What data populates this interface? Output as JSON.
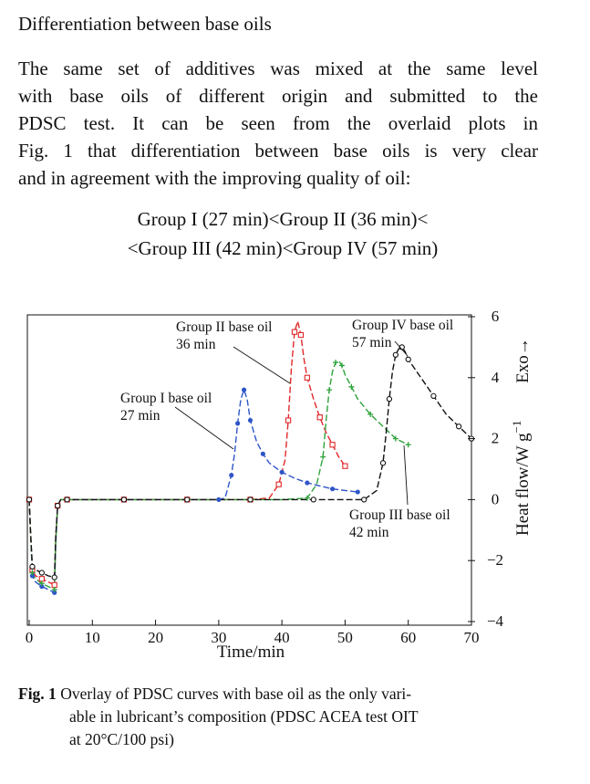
{
  "section_heading": "Differentiation between base oils",
  "paragraph_lines": [
    "The same set of additives was mixed at the same level",
    "with base oils of different origin and submitted to the",
    "PDSC test. It can be seen from the overlaid plots in",
    "Fig. 1 that differentiation between base oils is very clear",
    "and in agreement with the improving quality of oil:"
  ],
  "formula_lines": [
    "Group I (27 min)<Group II (36 min)<",
    "<Group III (42 min)<Group IV (57 min)"
  ],
  "figure_caption": {
    "label": "Fig. 1",
    "lines": [
      "Overlay of PDSC curves with base oil as the only vari-",
      "able in lubricant’s composition (PDSC ACEA test OIT",
      "at 20°C/100 psi)"
    ]
  },
  "chart_data": {
    "type": "line",
    "xlabel": "Time/min",
    "ylabel": "Heat flow/W g",
    "ylabel_superscript": "−1",
    "y_arrow_label": "Exo→",
    "xlim": [
      0,
      70
    ],
    "ylim": [
      -4,
      6
    ],
    "x_ticks": [
      0,
      10,
      20,
      30,
      40,
      50,
      60,
      70
    ],
    "y_ticks": [
      -4,
      -2,
      0,
      2,
      4,
      6
    ],
    "y_tick_labels": [
      "−4",
      "−2",
      "0",
      "2",
      "4",
      "6"
    ],
    "grid": false,
    "legend": "none (curves labelled directly)",
    "series": [
      {
        "name": "Group I base oil",
        "annotation": [
          "Group I base oil",
          "27 min"
        ],
        "color": "#2f56c8",
        "marker": "filled-circle",
        "x": [
          0,
          0.2,
          0.5,
          1,
          2,
          3,
          4,
          4.2,
          4.5,
          5,
          6,
          10,
          15,
          20,
          25,
          28,
          30,
          31,
          32,
          32.5,
          33,
          33.5,
          34,
          34.5,
          35,
          36,
          37,
          38,
          40,
          42,
          44,
          46,
          48,
          50,
          52
        ],
        "y": [
          0,
          -1,
          -2.5,
          -2.7,
          -2.85,
          -2.95,
          -3.05,
          -1.5,
          -0.2,
          0,
          0,
          0,
          0,
          0,
          0,
          0,
          0,
          0.05,
          0.8,
          1.5,
          2.5,
          3.3,
          3.6,
          3.3,
          2.6,
          1.9,
          1.5,
          1.2,
          0.9,
          0.7,
          0.55,
          0.45,
          0.35,
          0.3,
          0.25
        ]
      },
      {
        "name": "Group II base oil",
        "annotation": [
          "Group II base oil",
          "36 min"
        ],
        "color": "#e0282a",
        "marker": "open-square",
        "x": [
          0,
          0.2,
          0.5,
          1,
          2,
          3,
          4,
          4.2,
          4.5,
          5,
          6,
          10,
          15,
          20,
          25,
          30,
          35,
          38,
          39.5,
          40.5,
          41,
          41.5,
          42,
          42.5,
          43,
          43.5,
          44,
          45,
          46,
          47,
          48,
          49,
          50
        ],
        "y": [
          0,
          -1,
          -2.3,
          -2.5,
          -2.6,
          -2.7,
          -2.8,
          -1.3,
          -0.2,
          0,
          0,
          0,
          0,
          0,
          0,
          0,
          0,
          0.05,
          0.5,
          1.3,
          2.6,
          4.3,
          5.5,
          5.85,
          5.4,
          4.6,
          4.0,
          3.3,
          2.7,
          2.2,
          1.8,
          1.4,
          1.1
        ]
      },
      {
        "name": "Group III base oil",
        "annotation": [
          "Group III base oil",
          "42 min"
        ],
        "color": "#2ea33b",
        "marker": "plus",
        "x": [
          0,
          0.2,
          0.5,
          1,
          2,
          3,
          4,
          4.2,
          4.5,
          5,
          6,
          10,
          15,
          20,
          25,
          30,
          35,
          40,
          44,
          45.5,
          46.5,
          47,
          47.5,
          48,
          48.5,
          49,
          49.5,
          50,
          51,
          52,
          54,
          56,
          58,
          60
        ],
        "y": [
          0,
          -1,
          -2.4,
          -2.6,
          -2.75,
          -2.85,
          -2.95,
          -1.4,
          -0.2,
          0,
          0,
          0,
          0,
          0,
          0,
          0,
          0,
          0,
          0.05,
          0.5,
          1.4,
          2.6,
          3.6,
          4.2,
          4.5,
          4.55,
          4.4,
          4.1,
          3.7,
          3.3,
          2.8,
          2.4,
          2.0,
          1.8
        ]
      },
      {
        "name": "Group IV base oil",
        "annotation": [
          "Group IV base oil",
          "57 min"
        ],
        "color": "#111111",
        "marker": "open-circle",
        "x": [
          0,
          0.2,
          0.5,
          1,
          2,
          3,
          4,
          4.2,
          4.5,
          5,
          6,
          10,
          15,
          20,
          25,
          30,
          35,
          40,
          45,
          50,
          53,
          55,
          56,
          56.5,
          57,
          57.5,
          58,
          58.5,
          59,
          59.5,
          60,
          62,
          64,
          66,
          68,
          70
        ],
        "y": [
          0,
          -1,
          -2.2,
          -2.3,
          -2.4,
          -2.5,
          -2.55,
          -1.2,
          -0.2,
          0,
          0,
          0,
          0,
          0,
          0,
          0,
          0,
          0,
          0,
          0,
          0,
          0.3,
          1.2,
          2.2,
          3.3,
          4.2,
          4.75,
          4.95,
          5.0,
          4.85,
          4.6,
          4.0,
          3.4,
          2.8,
          2.4,
          2.0
        ]
      }
    ]
  }
}
